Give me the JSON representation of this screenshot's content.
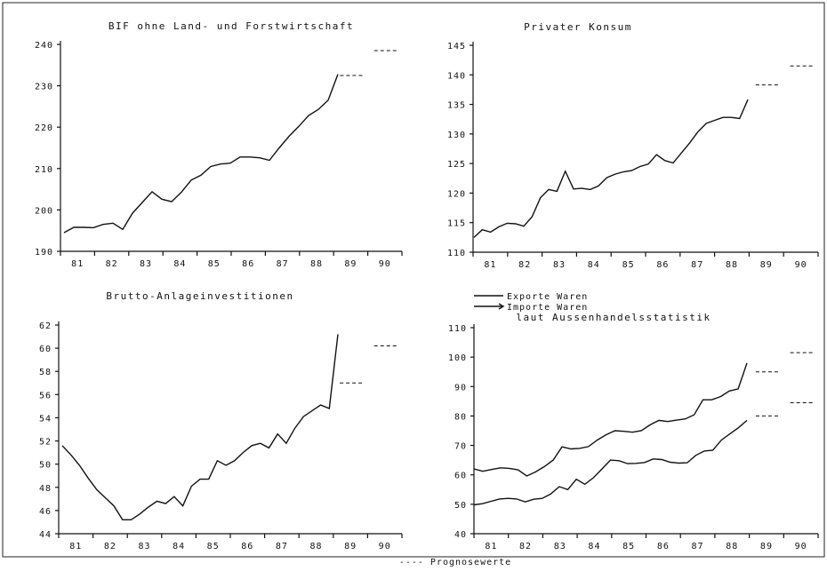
{
  "footer_legend": "---- Prognosewerte",
  "chart_data": [
    {
      "type": "line",
      "title": "BIF ohne Land- und Forstwirtschaft",
      "x_ticks": [
        "81",
        "82",
        "83",
        "84",
        "85",
        "86",
        "87",
        "88",
        "89",
        "90"
      ],
      "y_ticks": [
        190,
        200,
        210,
        220,
        230,
        240
      ],
      "ylim": [
        190,
        240
      ],
      "series": [
        {
          "values": [
            194.5,
            195.8,
            195.8,
            195.7,
            196.5,
            196.8,
            195.3,
            199.2,
            201.8,
            204.4,
            202.6,
            202.0,
            204.3,
            207.2,
            208.4,
            210.5,
            211.1,
            211.3,
            212.8,
            212.8,
            212.6,
            212.0,
            215.0,
            217.8,
            220.2,
            222.8,
            224.3,
            226.5,
            232.8
          ]
        }
      ],
      "forecast": [
        {
          "year": "89",
          "value": 232.5
        },
        {
          "year": "90",
          "value": 238.5
        }
      ]
    },
    {
      "type": "line",
      "title": "Privater Konsum",
      "x_ticks": [
        "81",
        "82",
        "83",
        "84",
        "85",
        "86",
        "87",
        "88",
        "89",
        "90"
      ],
      "y_ticks": [
        110,
        115,
        120,
        125,
        130,
        135,
        140,
        145
      ],
      "ylim": [
        110,
        145
      ],
      "series": [
        {
          "values": [
            112.5,
            113.8,
            113.4,
            114.3,
            114.9,
            114.8,
            114.4,
            116.0,
            119.2,
            120.6,
            120.3,
            123.7,
            120.7,
            120.8,
            120.6,
            121.2,
            122.6,
            123.2,
            123.6,
            123.8,
            124.5,
            124.9,
            126.5,
            125.5,
            125.1,
            126.8,
            128.5,
            130.4,
            131.8,
            132.3,
            132.8,
            132.8,
            132.6,
            135.8
          ]
        }
      ],
      "forecast": [
        {
          "year": "89",
          "value": 138.3
        },
        {
          "year": "90",
          "value": 141.5
        }
      ]
    },
    {
      "type": "line",
      "title": "Brutto-Anlageinvestitionen",
      "x_ticks": [
        "81",
        "82",
        "83",
        "84",
        "85",
        "86",
        "87",
        "88",
        "89",
        "90"
      ],
      "y_ticks": [
        44,
        46,
        48,
        50,
        52,
        54,
        56,
        58,
        60,
        62
      ],
      "ylim": [
        44,
        62
      ],
      "series": [
        {
          "values": [
            51.6,
            50.8,
            49.9,
            48.8,
            47.8,
            47.1,
            46.4,
            45.2,
            45.2,
            45.7,
            46.3,
            46.8,
            46.6,
            47.2,
            46.4,
            48.1,
            48.7,
            48.7,
            50.3,
            49.9,
            50.3,
            51.0,
            51.6,
            51.8,
            51.4,
            52.6,
            51.8,
            53.1,
            54.1,
            54.6,
            55.1,
            54.8,
            61.2
          ]
        }
      ],
      "forecast": [
        {
          "year": "89",
          "value": 57.0
        },
        {
          "year": "90",
          "value": 60.2
        }
      ]
    },
    {
      "type": "line",
      "title": "laut Aussenhandelsstatistik",
      "x_ticks": [
        "81",
        "82",
        "83",
        "84",
        "85",
        "86",
        "87",
        "88",
        "89",
        "90"
      ],
      "y_ticks": [
        40,
        50,
        60,
        70,
        80,
        90,
        100,
        110
      ],
      "ylim": [
        40,
        110
      ],
      "legend": [
        "Exporte Waren",
        "Importe Waren"
      ],
      "series": [
        {
          "name": "Exporte Waren",
          "values": [
            49.8,
            50.2,
            51.0,
            51.8,
            52.0,
            51.8,
            50.8,
            51.7,
            52.0,
            53.5,
            56.0,
            55.0,
            58.5,
            56.8,
            59.0,
            62.0,
            65.0,
            64.8,
            63.8,
            63.9,
            64.2,
            65.4,
            65.2,
            64.3,
            64.0,
            64.1,
            66.6,
            68.1,
            68.4,
            71.8,
            73.9,
            76.0,
            78.5
          ]
        },
        {
          "name": "Importe Waren",
          "values": [
            62.0,
            61.2,
            61.8,
            62.4,
            62.2,
            61.7,
            59.6,
            61.0,
            62.8,
            65.0,
            69.5,
            68.8,
            69.0,
            69.6,
            71.8,
            73.6,
            75.0,
            74.8,
            74.5,
            75.0,
            77.0,
            78.5,
            78.1,
            78.6,
            79.0,
            80.4,
            85.5,
            85.5,
            86.6,
            88.5,
            89.2,
            98.0
          ]
        }
      ],
      "forecast": [
        {
          "year": "89",
          "value": 80.0
        },
        {
          "year": "90",
          "value": 84.5
        },
        {
          "year": "89",
          "value": 95.0
        },
        {
          "year": "90",
          "value": 101.5
        }
      ]
    }
  ]
}
